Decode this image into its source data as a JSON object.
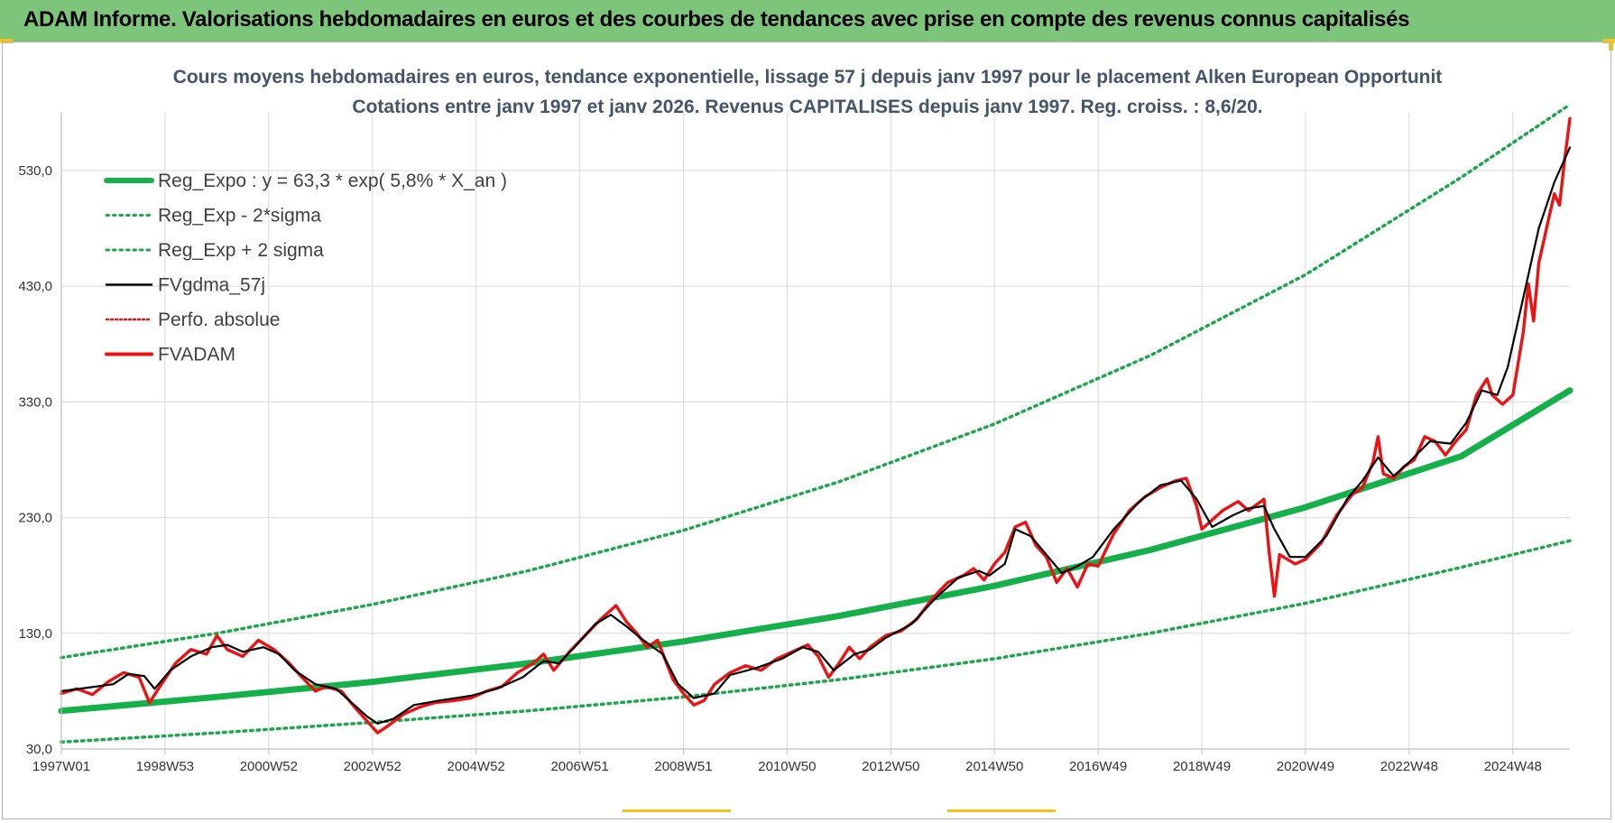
{
  "header": {
    "title": "ADAM Informe. Valorisations hebdomadaires en euros et des courbes de tendances avec prise en compte des revenus connus capitalisés"
  },
  "colors": {
    "header_bg": "#7dc57a",
    "trend": "#16b04a",
    "band": "#1aa84a",
    "gdma": "#000000",
    "fvadam": "#ee1111",
    "perfo": "#ee1111",
    "grid": "#d9d9d9"
  },
  "chart_data": {
    "type": "line",
    "title_lines": [
      "Cours moyens hebdomadaires en euros, tendance exponentielle, lissage 57 j depuis janv 1997  pour le placement Alken European Opportunit",
      "Cotations entre janv 1997 et janv 2026. Revenus CAPITALISES depuis janv 1997. Reg. croiss. : 8,6/20."
    ],
    "x_range": [
      1997.0,
      2026.1
    ],
    "x_ticks": [
      {
        "label": "1997W01",
        "x": 1997.0
      },
      {
        "label": "1998W53",
        "x": 1999.0
      },
      {
        "label": "2000W52",
        "x": 2001.0
      },
      {
        "label": "2002W52",
        "x": 2003.0
      },
      {
        "label": "2004W52",
        "x": 2005.0
      },
      {
        "label": "2006W51",
        "x": 2007.0
      },
      {
        "label": "2008W51",
        "x": 2009.0
      },
      {
        "label": "2010W50",
        "x": 2011.0
      },
      {
        "label": "2012W50",
        "x": 2013.0
      },
      {
        "label": "2014W50",
        "x": 2015.0
      },
      {
        "label": "2016W49",
        "x": 2017.0
      },
      {
        "label": "2018W49",
        "x": 2019.0
      },
      {
        "label": "2020W49",
        "x": 2021.0
      },
      {
        "label": "2022W48",
        "x": 2023.0
      },
      {
        "label": "2024W48",
        "x": 2025.0
      }
    ],
    "y_range": [
      30,
      580
    ],
    "y_ticks": [
      "30,0",
      "130,0",
      "230,0",
      "330,0",
      "430,0",
      "530,0"
    ],
    "y_tick_values": [
      30,
      130,
      230,
      330,
      430,
      530
    ],
    "grid": true,
    "legend": {
      "position": "top-left",
      "entries": [
        {
          "label": "Reg_Expo : y = 63,3 * exp( 5,8% *  X_an )",
          "style": "trend"
        },
        {
          "label": "Reg_Exp - 2*sigma",
          "style": "band"
        },
        {
          "label": "Reg_Exp + 2 sigma",
          "style": "band"
        },
        {
          "label": "FVgdma_57j",
          "style": "gdma"
        },
        {
          "label": "Perfo. absolue",
          "style": "perfo"
        },
        {
          "label": "FVADAM",
          "style": "fvadam"
        }
      ]
    },
    "series": [
      {
        "name": "Reg_Expo : y = 63,3 * exp( 5,8% *  X_an )",
        "points": [
          [
            1997.0,
            63
          ],
          [
            2000.0,
            75
          ],
          [
            2003.0,
            88
          ],
          [
            2006.0,
            104
          ],
          [
            2009.0,
            123
          ],
          [
            2012.0,
            145
          ],
          [
            2015.0,
            171
          ],
          [
            2018.0,
            202
          ],
          [
            2021.0,
            239
          ],
          [
            2024.0,
            283
          ],
          [
            2026.1,
            340
          ]
        ]
      },
      {
        "name": "Reg_Exp - 2*sigma",
        "points": [
          [
            1997.0,
            36
          ],
          [
            2000.0,
            44
          ],
          [
            2003.0,
            53
          ],
          [
            2006.0,
            63
          ],
          [
            2009.0,
            75
          ],
          [
            2012.0,
            90
          ],
          [
            2015.0,
            108
          ],
          [
            2018.0,
            130
          ],
          [
            2021.0,
            156
          ],
          [
            2024.0,
            187
          ],
          [
            2026.1,
            210
          ]
        ]
      },
      {
        "name": "Reg_Exp + 2 sigma",
        "points": [
          [
            1997.0,
            109
          ],
          [
            2000.0,
            130
          ],
          [
            2003.0,
            155
          ],
          [
            2006.0,
            184
          ],
          [
            2009.0,
            219
          ],
          [
            2012.0,
            261
          ],
          [
            2015.0,
            311
          ],
          [
            2018.0,
            370
          ],
          [
            2021.0,
            440
          ],
          [
            2024.0,
            524
          ],
          [
            2026.1,
            587
          ]
        ]
      },
      {
        "name": "FVgdma_57j",
        "points": [
          [
            1997.0,
            80
          ],
          [
            1997.5,
            83
          ],
          [
            1998.0,
            86
          ],
          [
            1998.3,
            95
          ],
          [
            1998.6,
            93
          ],
          [
            1998.8,
            82
          ],
          [
            1999.1,
            98
          ],
          [
            1999.5,
            110
          ],
          [
            1999.9,
            118
          ],
          [
            2000.2,
            120
          ],
          [
            2000.5,
            114
          ],
          [
            2000.9,
            118
          ],
          [
            2001.2,
            112
          ],
          [
            2001.5,
            98
          ],
          [
            2001.9,
            86
          ],
          [
            2002.3,
            82
          ],
          [
            2002.6,
            70
          ],
          [
            2002.9,
            58
          ],
          [
            2003.1,
            52
          ],
          [
            2003.4,
            56
          ],
          [
            2003.8,
            68
          ],
          [
            2004.3,
            72
          ],
          [
            2004.9,
            76
          ],
          [
            2005.4,
            82
          ],
          [
            2005.9,
            92
          ],
          [
            2006.3,
            106
          ],
          [
            2006.6,
            104
          ],
          [
            2006.9,
            118
          ],
          [
            2007.3,
            138
          ],
          [
            2007.6,
            146
          ],
          [
            2007.9,
            136
          ],
          [
            2008.2,
            125
          ],
          [
            2008.6,
            112
          ],
          [
            2008.9,
            86
          ],
          [
            2009.2,
            74
          ],
          [
            2009.6,
            78
          ],
          [
            2009.9,
            94
          ],
          [
            2010.4,
            100
          ],
          [
            2010.9,
            108
          ],
          [
            2011.3,
            118
          ],
          [
            2011.6,
            114
          ],
          [
            2011.9,
            98
          ],
          [
            2012.3,
            112
          ],
          [
            2012.6,
            116
          ],
          [
            2012.9,
            126
          ],
          [
            2013.4,
            138
          ],
          [
            2013.9,
            162
          ],
          [
            2014.3,
            178
          ],
          [
            2014.7,
            184
          ],
          [
            2014.9,
            180
          ],
          [
            2015.2,
            190
          ],
          [
            2015.4,
            220
          ],
          [
            2015.7,
            214
          ],
          [
            2016.0,
            198
          ],
          [
            2016.3,
            182
          ],
          [
            2016.6,
            188
          ],
          [
            2016.9,
            196
          ],
          [
            2017.3,
            220
          ],
          [
            2017.8,
            244
          ],
          [
            2018.2,
            258
          ],
          [
            2018.6,
            262
          ],
          [
            2018.9,
            246
          ],
          [
            2019.2,
            222
          ],
          [
            2019.6,
            232
          ],
          [
            2019.9,
            238
          ],
          [
            2020.2,
            240
          ],
          [
            2020.4,
            220
          ],
          [
            2020.7,
            196
          ],
          [
            2021.0,
            196
          ],
          [
            2021.4,
            214
          ],
          [
            2021.8,
            246
          ],
          [
            2022.1,
            262
          ],
          [
            2022.4,
            282
          ],
          [
            2022.7,
            266
          ],
          [
            2023.0,
            278
          ],
          [
            2023.4,
            296
          ],
          [
            2023.8,
            294
          ],
          [
            2024.1,
            312
          ],
          [
            2024.4,
            340
          ],
          [
            2024.7,
            336
          ],
          [
            2024.9,
            360
          ],
          [
            2025.2,
            420
          ],
          [
            2025.5,
            480
          ],
          [
            2025.8,
            520
          ],
          [
            2026.1,
            550
          ]
        ]
      },
      {
        "name": "FVADAM",
        "points": [
          [
            1997.0,
            78
          ],
          [
            1997.3,
            82
          ],
          [
            1997.6,
            77
          ],
          [
            1997.9,
            88
          ],
          [
            1998.2,
            96
          ],
          [
            1998.5,
            92
          ],
          [
            1998.7,
            70
          ],
          [
            1998.9,
            84
          ],
          [
            1999.2,
            104
          ],
          [
            1999.5,
            116
          ],
          [
            1999.8,
            112
          ],
          [
            2000.0,
            128
          ],
          [
            2000.2,
            116
          ],
          [
            2000.5,
            110
          ],
          [
            2000.8,
            124
          ],
          [
            2001.1,
            116
          ],
          [
            2001.4,
            104
          ],
          [
            2001.6,
            94
          ],
          [
            2001.9,
            80
          ],
          [
            2002.1,
            84
          ],
          [
            2002.4,
            80
          ],
          [
            2002.7,
            64
          ],
          [
            2002.9,
            54
          ],
          [
            2003.1,
            44
          ],
          [
            2003.3,
            50
          ],
          [
            2003.6,
            60
          ],
          [
            2003.9,
            66
          ],
          [
            2004.2,
            70
          ],
          [
            2004.6,
            72
          ],
          [
            2004.9,
            74
          ],
          [
            2005.2,
            80
          ],
          [
            2005.5,
            84
          ],
          [
            2005.8,
            96
          ],
          [
            2006.1,
            104
          ],
          [
            2006.3,
            112
          ],
          [
            2006.5,
            98
          ],
          [
            2006.8,
            114
          ],
          [
            2007.1,
            128
          ],
          [
            2007.4,
            142
          ],
          [
            2007.7,
            154
          ],
          [
            2007.9,
            140
          ],
          [
            2008.1,
            130
          ],
          [
            2008.3,
            118
          ],
          [
            2008.5,
            124
          ],
          [
            2008.8,
            90
          ],
          [
            2009.0,
            78
          ],
          [
            2009.2,
            68
          ],
          [
            2009.4,
            72
          ],
          [
            2009.6,
            86
          ],
          [
            2009.9,
            96
          ],
          [
            2010.2,
            102
          ],
          [
            2010.5,
            98
          ],
          [
            2010.8,
            108
          ],
          [
            2011.1,
            114
          ],
          [
            2011.4,
            120
          ],
          [
            2011.6,
            110
          ],
          [
            2011.8,
            92
          ],
          [
            2012.0,
            104
          ],
          [
            2012.2,
            118
          ],
          [
            2012.4,
            108
          ],
          [
            2012.6,
            118
          ],
          [
            2012.9,
            128
          ],
          [
            2013.2,
            132
          ],
          [
            2013.5,
            142
          ],
          [
            2013.8,
            160
          ],
          [
            2014.1,
            174
          ],
          [
            2014.4,
            180
          ],
          [
            2014.6,
            186
          ],
          [
            2014.8,
            176
          ],
          [
            2015.0,
            190
          ],
          [
            2015.2,
            200
          ],
          [
            2015.4,
            222
          ],
          [
            2015.6,
            226
          ],
          [
            2015.8,
            206
          ],
          [
            2016.0,
            196
          ],
          [
            2016.2,
            174
          ],
          [
            2016.4,
            186
          ],
          [
            2016.6,
            170
          ],
          [
            2016.8,
            190
          ],
          [
            2017.0,
            188
          ],
          [
            2017.3,
            216
          ],
          [
            2017.6,
            236
          ],
          [
            2017.9,
            248
          ],
          [
            2018.2,
            256
          ],
          [
            2018.5,
            262
          ],
          [
            2018.7,
            264
          ],
          [
            2018.9,
            240
          ],
          [
            2019.0,
            220
          ],
          [
            2019.2,
            228
          ],
          [
            2019.4,
            236
          ],
          [
            2019.7,
            244
          ],
          [
            2019.9,
            236
          ],
          [
            2020.2,
            246
          ],
          [
            2020.3,
            200
          ],
          [
            2020.4,
            162
          ],
          [
            2020.5,
            198
          ],
          [
            2020.8,
            190
          ],
          [
            2021.0,
            194
          ],
          [
            2021.3,
            208
          ],
          [
            2021.6,
            232
          ],
          [
            2021.9,
            250
          ],
          [
            2022.1,
            256
          ],
          [
            2022.3,
            278
          ],
          [
            2022.4,
            300
          ],
          [
            2022.5,
            268
          ],
          [
            2022.7,
            264
          ],
          [
            2022.9,
            274
          ],
          [
            2023.1,
            280
          ],
          [
            2023.3,
            300
          ],
          [
            2023.5,
            296
          ],
          [
            2023.7,
            284
          ],
          [
            2023.9,
            296
          ],
          [
            2024.1,
            306
          ],
          [
            2024.3,
            336
          ],
          [
            2024.5,
            350
          ],
          [
            2024.6,
            336
          ],
          [
            2024.8,
            328
          ],
          [
            2025.0,
            336
          ],
          [
            2025.2,
            390
          ],
          [
            2025.3,
            432
          ],
          [
            2025.4,
            400
          ],
          [
            2025.5,
            450
          ],
          [
            2025.7,
            490
          ],
          [
            2025.8,
            510
          ],
          [
            2025.9,
            500
          ],
          [
            2026.0,
            540
          ],
          [
            2026.1,
            575
          ]
        ]
      }
    ]
  }
}
